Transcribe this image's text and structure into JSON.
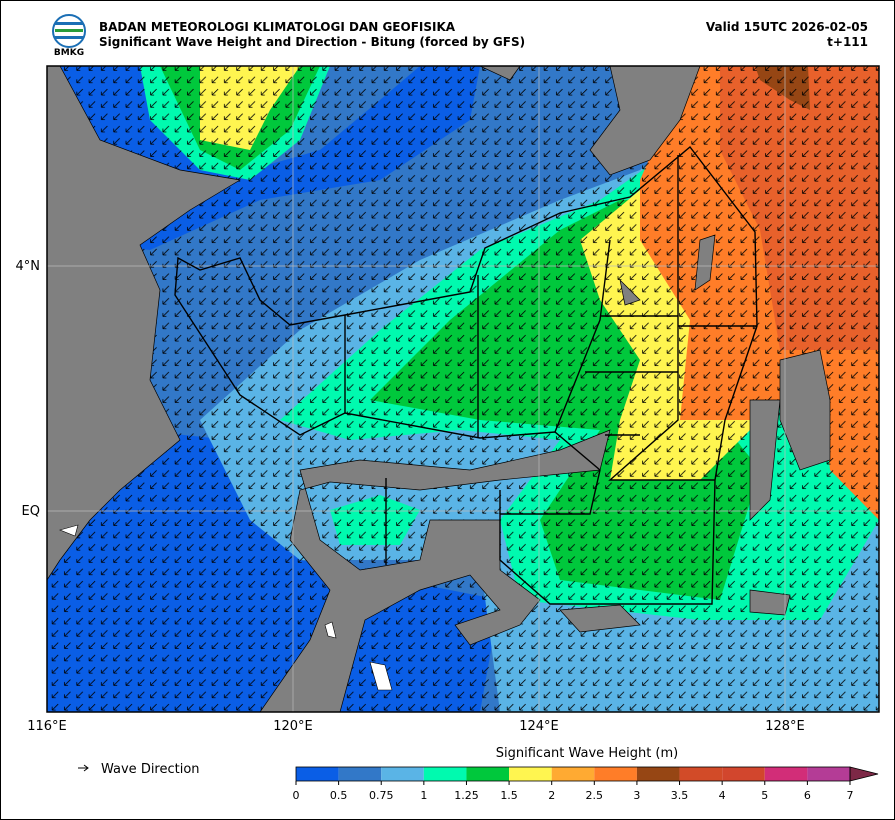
{
  "header": {
    "logo": "BMKG",
    "agency": "BADAN METEOROLOGI KLIMATOLOGI DAN GEOFISIKA",
    "subtitle": "Significant Wave Height and Direction - Bitung (forced by GFS)",
    "valid": "Valid 15UTC 2026-02-05",
    "lead": "t+111"
  },
  "map": {
    "lat_labels": [
      "4°N",
      "EQ"
    ],
    "lon_labels": [
      "116°E",
      "120°E",
      "124°E",
      "128°E"
    ]
  },
  "legend": {
    "wave_direction": "Wave Direction"
  },
  "colorbar": {
    "title": "Significant Wave Height (m)",
    "ticks": [
      "0",
      "0.5",
      "0.75",
      "1",
      "1.25",
      "1.5",
      "2",
      "2.5",
      "3",
      "3.5",
      "4",
      "5",
      "6",
      "7"
    ],
    "colors": [
      "#0a5ee6",
      "#3278c8",
      "#5ab4e6",
      "#00faaf",
      "#00c83c",
      "#fff550",
      "#ffaa32",
      "#ff7d28",
      "#964614",
      "#d24b28",
      "#d2462d",
      "#d22d78",
      "#b43c96",
      "#7d2846"
    ]
  }
}
